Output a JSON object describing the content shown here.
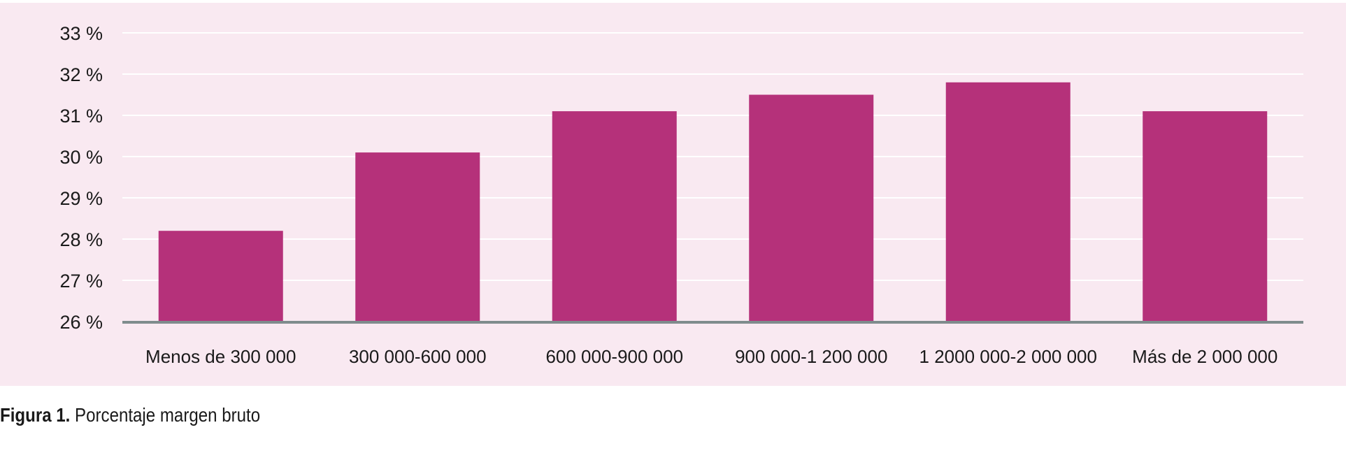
{
  "chart_data": {
    "type": "bar",
    "title": "",
    "xlabel": "",
    "ylabel": "",
    "categories": [
      "Menos de 300 000",
      "300 000-600 000",
      "600 000-900 000",
      "900 000-1 200 000",
      "1 2000 000-2 000 000",
      "Más de 2 000 000"
    ],
    "values": [
      28.2,
      30.1,
      31.1,
      31.5,
      31.8,
      31.1
    ],
    "ylim": [
      26,
      33
    ],
    "yticks": [
      "26 %",
      "27 %",
      "28 %",
      "29 %",
      "30 %",
      "31 %",
      "32 %",
      "33 %"
    ],
    "grid": true,
    "legend": "none",
    "colors": {
      "bar": "#b5317a",
      "background": "#f9e9f1",
      "gridline": "#ffffff",
      "baseline": "#7f8c8d"
    }
  },
  "caption": {
    "label": "Figura 1.",
    "text": " Porcentaje margen bruto"
  }
}
